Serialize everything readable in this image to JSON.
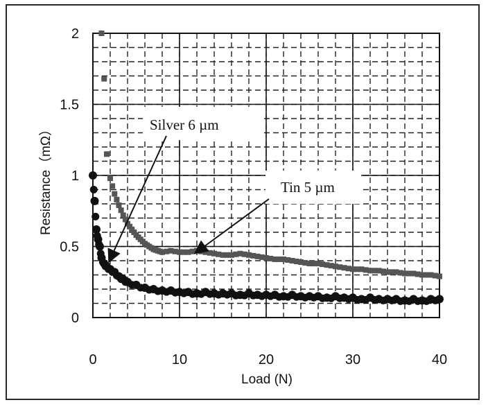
{
  "chart_data": {
    "type": "scatter",
    "title": "",
    "xlabel": "Load (N)",
    "ylabel": "Resistance（mΩ）",
    "xlim": [
      0,
      40
    ],
    "ylim": [
      0,
      2
    ],
    "xticks": [
      "0",
      "10",
      "20",
      "30",
      "40"
    ],
    "yticks": [
      "0",
      "0.5",
      "1",
      "1.5",
      "2"
    ],
    "grid": true,
    "annotations": [
      {
        "text": "Silver 6 µm",
        "points_to": [
          2,
          0.4
        ]
      },
      {
        "text": "Tin 5 µm",
        "points_to": [
          12,
          0.46
        ]
      }
    ],
    "series": [
      {
        "color": "#555555",
        "marker": "square",
        "x": [
          1.0,
          1.3,
          1.6,
          2.0,
          2.5,
          3.0,
          3.5,
          4.0,
          4.5,
          5.0,
          5.5,
          6.0,
          6.5,
          7.0,
          7.5,
          8.0,
          9.0,
          10.0,
          11.0,
          12.0,
          13.0,
          14.0,
          15.0,
          16.0,
          17.0,
          18.0,
          19.0,
          20.0,
          21.0,
          22.0,
          23.0,
          24.0,
          25.0,
          26.0,
          27.0,
          28.0,
          29.0,
          30.0,
          31.0,
          32.0,
          33.0,
          34.0,
          35.0,
          36.0,
          37.0,
          38.0,
          39.0,
          40.0
        ],
        "y": [
          2.0,
          1.68,
          1.15,
          0.98,
          0.87,
          0.79,
          0.72,
          0.66,
          0.62,
          0.58,
          0.55,
          0.52,
          0.5,
          0.48,
          0.47,
          0.46,
          0.47,
          0.46,
          0.46,
          0.47,
          0.46,
          0.45,
          0.44,
          0.44,
          0.45,
          0.44,
          0.43,
          0.42,
          0.41,
          0.41,
          0.4,
          0.39,
          0.38,
          0.38,
          0.37,
          0.36,
          0.35,
          0.34,
          0.34,
          0.33,
          0.33,
          0.32,
          0.32,
          0.31,
          0.31,
          0.3,
          0.3,
          0.29
        ]
      },
      {
        "color": "#111111",
        "marker": "circle",
        "x": [
          0.0,
          0.2,
          0.4,
          0.6,
          0.8,
          1.0,
          1.3,
          1.6,
          2.0,
          2.5,
          3.0,
          3.5,
          4.0,
          5.0,
          6.0,
          7.0,
          8.0,
          9.0,
          10.0,
          11.0,
          12.0,
          13.0,
          14.0,
          15.0,
          16.0,
          17.0,
          18.0,
          19.0,
          20.0,
          21.0,
          22.0,
          23.0,
          24.0,
          25.0,
          26.0,
          27.0,
          28.0,
          29.0,
          30.0,
          31.0,
          32.0,
          33.0,
          34.0,
          35.0,
          36.0,
          37.0,
          38.0,
          39.0,
          40.0
        ],
        "y": [
          1.0,
          0.82,
          0.62,
          0.55,
          0.5,
          0.42,
          0.38,
          0.36,
          0.34,
          0.32,
          0.29,
          0.27,
          0.25,
          0.23,
          0.21,
          0.2,
          0.19,
          0.19,
          0.18,
          0.18,
          0.17,
          0.18,
          0.17,
          0.17,
          0.17,
          0.16,
          0.17,
          0.16,
          0.16,
          0.16,
          0.15,
          0.16,
          0.15,
          0.15,
          0.15,
          0.14,
          0.15,
          0.14,
          0.14,
          0.13,
          0.14,
          0.13,
          0.13,
          0.13,
          0.12,
          0.13,
          0.12,
          0.13,
          0.13
        ]
      }
    ]
  }
}
